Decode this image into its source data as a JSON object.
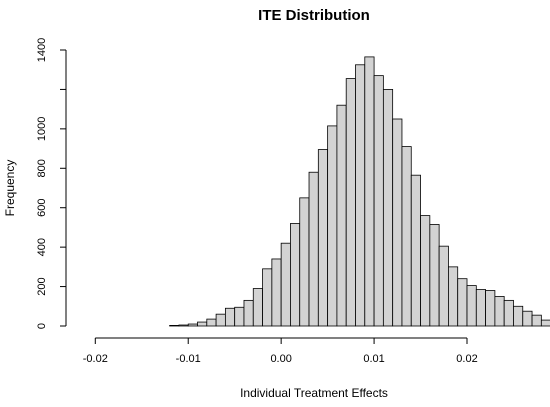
{
  "chart_data": {
    "type": "bar",
    "title": "ITE Distribution",
    "xlabel": "Individual Treatment Effects",
    "ylabel": "Frequency",
    "xlim": [
      -0.021,
      0.0285
    ],
    "ylim": [
      0,
      1400
    ],
    "bin_width": 0.001,
    "bin_start": -0.02,
    "values": [
      0,
      0,
      0,
      0,
      0,
      0,
      0,
      0,
      3,
      5,
      10,
      20,
      35,
      60,
      90,
      95,
      130,
      190,
      290,
      340,
      420,
      520,
      650,
      780,
      895,
      1015,
      1120,
      1255,
      1325,
      1365,
      1270,
      1200,
      1050,
      910,
      765,
      560,
      515,
      405,
      300,
      240,
      205,
      185,
      180,
      150,
      130,
      100,
      75,
      55,
      30,
      20,
      10,
      5
    ],
    "x_ticks": [
      -0.02,
      -0.01,
      0.0,
      0.01,
      0.02
    ],
    "x_tick_labels": [
      "-0.02",
      "-0.01",
      "0.00",
      "0.01",
      "0.02"
    ],
    "y_ticks": [
      0,
      200,
      400,
      600,
      800,
      1000,
      1200,
      1400
    ],
    "y_tick_labels": [
      "0",
      "200",
      "400",
      "600",
      "800",
      "1000",
      "",
      "1400"
    ],
    "bar_fill": "#d3d3d3",
    "bar_stroke": "#000000",
    "grid": false,
    "legend": "none"
  }
}
